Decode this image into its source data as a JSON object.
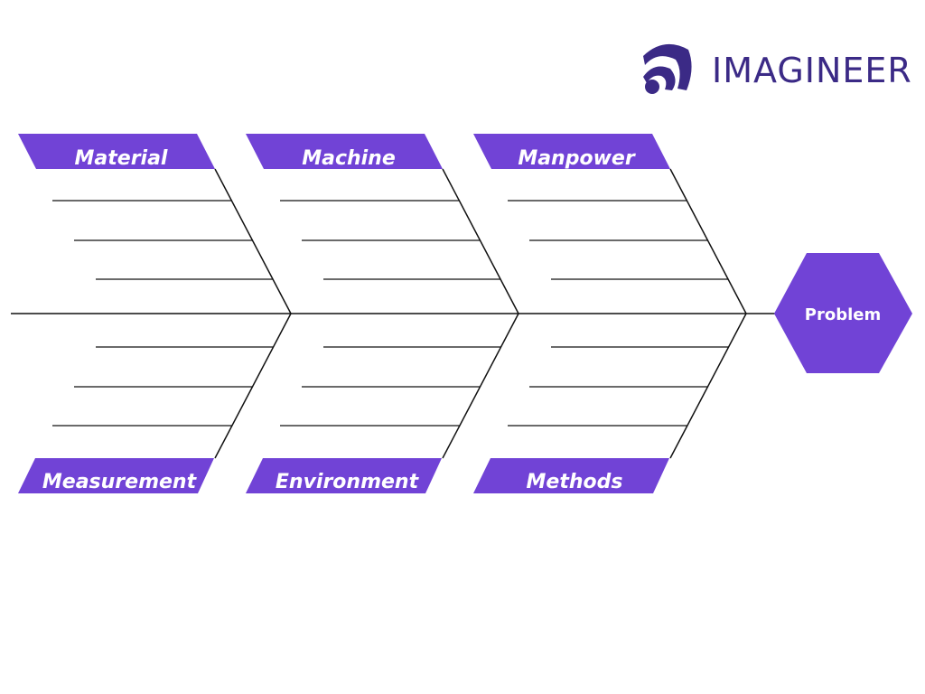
{
  "logo": {
    "text": "IMAGINEER",
    "color": "#3b2a86"
  },
  "accent_color": "#7143d6",
  "line_color": "#111111",
  "problem": {
    "label": "Problem"
  },
  "categories": {
    "top": [
      "Material",
      "Machine",
      "Manpower"
    ],
    "bottom": [
      "Measurement",
      "Environment",
      "Methods"
    ]
  }
}
